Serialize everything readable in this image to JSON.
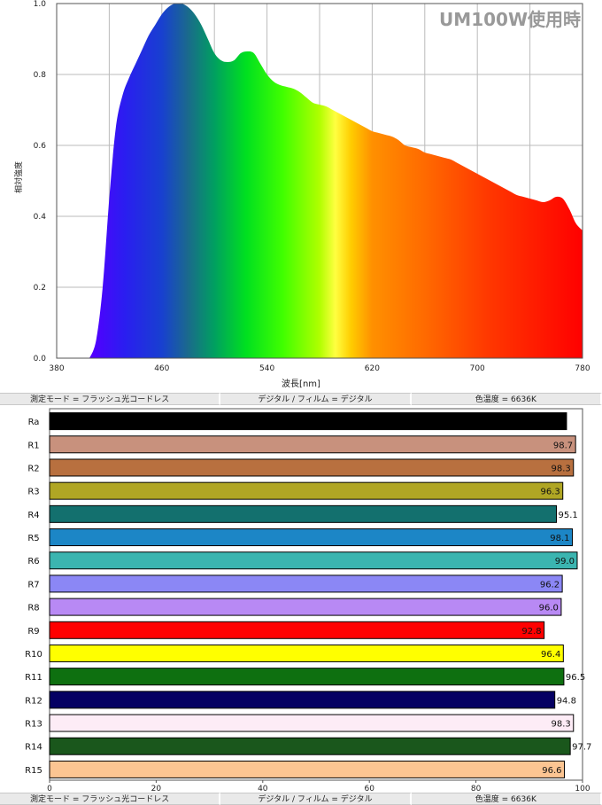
{
  "chart_data": [
    {
      "type": "area",
      "title": "UM100W使用時",
      "xlabel": "波長[nm]",
      "ylabel": "相対強度",
      "xlim": [
        380,
        780
      ],
      "ylim": [
        0,
        1.0
      ],
      "xticks": [
        "380",
        "460",
        "540",
        "620",
        "700",
        "780"
      ],
      "yticks": [
        "0.0",
        "0.2",
        "0.4",
        "0.6",
        "0.8",
        "1.0"
      ],
      "grid": true,
      "x": [
        405,
        410,
        415,
        420,
        425,
        430,
        435,
        440,
        445,
        450,
        455,
        460,
        465,
        470,
        475,
        480,
        485,
        490,
        495,
        500,
        505,
        510,
        515,
        520,
        525,
        530,
        535,
        540,
        545,
        550,
        555,
        560,
        565,
        570,
        575,
        580,
        585,
        590,
        595,
        600,
        605,
        610,
        615,
        620,
        625,
        630,
        635,
        640,
        645,
        650,
        655,
        660,
        665,
        670,
        675,
        680,
        685,
        690,
        695,
        700,
        705,
        710,
        715,
        720,
        725,
        730,
        735,
        740,
        745,
        750,
        755,
        760,
        765,
        770,
        775,
        780
      ],
      "y": [
        0.0,
        0.05,
        0.2,
        0.45,
        0.65,
        0.74,
        0.79,
        0.83,
        0.87,
        0.91,
        0.94,
        0.97,
        0.99,
        1.0,
        1.0,
        0.99,
        0.97,
        0.94,
        0.9,
        0.86,
        0.84,
        0.835,
        0.84,
        0.86,
        0.865,
        0.86,
        0.83,
        0.8,
        0.78,
        0.77,
        0.765,
        0.76,
        0.75,
        0.735,
        0.72,
        0.715,
        0.71,
        0.7,
        0.69,
        0.68,
        0.67,
        0.66,
        0.65,
        0.64,
        0.635,
        0.63,
        0.625,
        0.615,
        0.6,
        0.595,
        0.59,
        0.58,
        0.575,
        0.57,
        0.565,
        0.56,
        0.55,
        0.54,
        0.53,
        0.52,
        0.51,
        0.5,
        0.49,
        0.48,
        0.47,
        0.46,
        0.455,
        0.45,
        0.445,
        0.44,
        0.445,
        0.455,
        0.45,
        0.42,
        0.38,
        0.36
      ]
    },
    {
      "type": "bar",
      "orientation": "horizontal",
      "categories": [
        "Ra",
        "R1",
        "R2",
        "R3",
        "R4",
        "R5",
        "R6",
        "R7",
        "R8",
        "R9",
        "R10",
        "R11",
        "R12",
        "R13",
        "R14",
        "R15"
      ],
      "values": [
        97.0,
        98.7,
        98.3,
        96.3,
        95.1,
        98.1,
        99.0,
        96.2,
        96.0,
        92.8,
        96.4,
        96.5,
        94.8,
        98.3,
        97.7,
        96.6
      ],
      "value_labels": [
        "",
        "98.7",
        "98.3",
        "96.3",
        "95.1",
        "98.1",
        "99.0",
        "96.2",
        "96.0",
        "92.8",
        "96.4",
        "96.5",
        "94.8",
        "98.3",
        "97.7",
        "96.6"
      ],
      "colors": [
        "#000000",
        "#c8917d",
        "#b8703f",
        "#b0a624",
        "#13706e",
        "#1c86c6",
        "#3bb5b0",
        "#8b87f5",
        "#b889f4",
        "#ff0000",
        "#ffff00",
        "#0e7010",
        "#050063",
        "#fdecf6",
        "#1a571c",
        "#fcc592"
      ],
      "xlim": [
        0,
        100
      ],
      "xticks": [
        "0",
        "20",
        "40",
        "60",
        "80",
        "100"
      ]
    }
  ],
  "info_bar": {
    "mode": "測定モード = フラッシュ光コードレス",
    "media": "デジタル / フィルム = デジタル",
    "color_temp": "色温度 = 6636K"
  }
}
